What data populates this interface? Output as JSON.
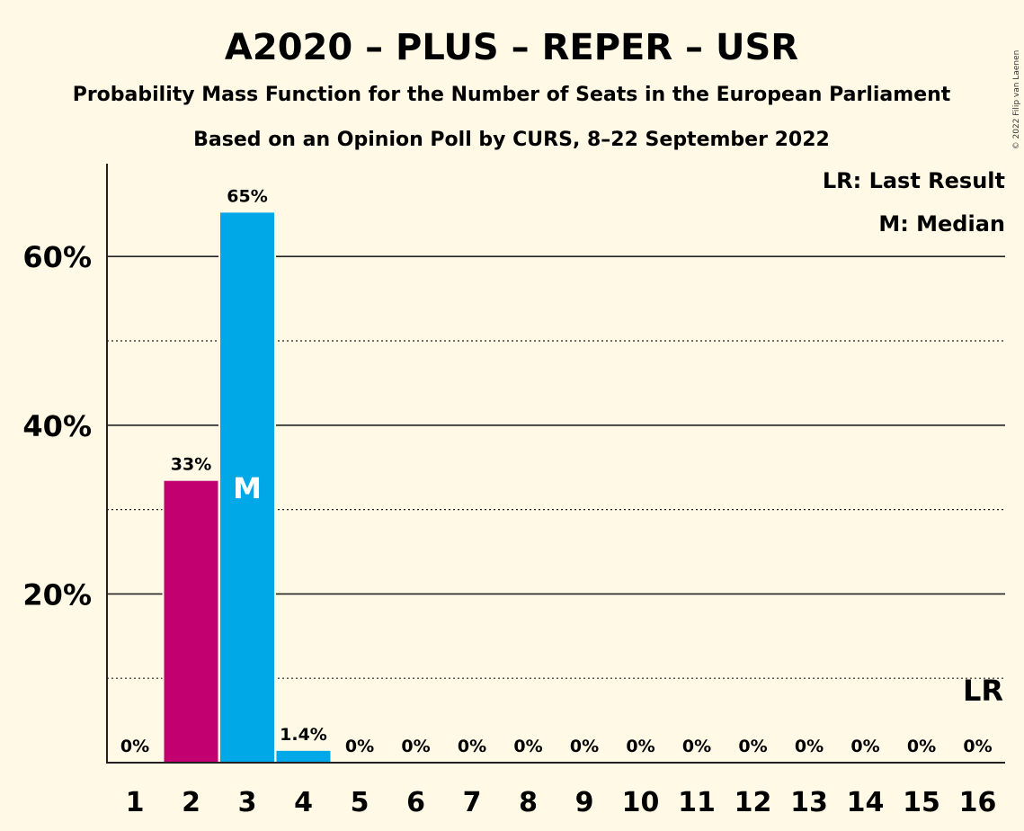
{
  "chart_data": {
    "type": "bar",
    "title": "A2020 – PLUS – REPER – USR",
    "subtitle": "Probability Mass Function for the Number of Seats in the European Parliament",
    "subtitle2": "Based on an Opinion Poll by CURS, 8–22 September 2022",
    "copyright": "© 2022 Filip van Laenen",
    "categories": [
      "1",
      "2",
      "3",
      "4",
      "5",
      "6",
      "7",
      "8",
      "9",
      "10",
      "11",
      "12",
      "13",
      "14",
      "15",
      "16"
    ],
    "values": [
      0,
      33.4,
      65.2,
      1.4,
      0,
      0,
      0,
      0,
      0,
      0,
      0,
      0,
      0,
      0,
      0,
      0
    ],
    "value_labels": [
      "0%",
      "33%",
      "65%",
      "1.4%",
      "0%",
      "0%",
      "0%",
      "0%",
      "0%",
      "0%",
      "0%",
      "0%",
      "0%",
      "0%",
      "0%",
      "0%"
    ],
    "bar_colors": [
      "#c2006f",
      "#c2006f",
      "#00a8e7",
      "#00a8e7",
      "#00a8e7",
      "#00a8e7",
      "#00a8e7",
      "#00a8e7",
      "#00a8e7",
      "#00a8e7",
      "#00a8e7",
      "#00a8e7",
      "#00a8e7",
      "#00a8e7",
      "#00a8e7",
      "#00a8e7"
    ],
    "ylim": [
      0,
      71
    ],
    "yticks": [
      20,
      40,
      60
    ],
    "ytick_labels": [
      "20%",
      "40%",
      "60%"
    ],
    "minor_gridlines": [
      10,
      30,
      50
    ],
    "median_index": 2,
    "median_mark": "M",
    "last_result_index": 15,
    "last_result_mark": "LR",
    "legend": {
      "placement": "top-right",
      "items": [
        "LR: Last Result",
        "M: Median"
      ]
    }
  }
}
